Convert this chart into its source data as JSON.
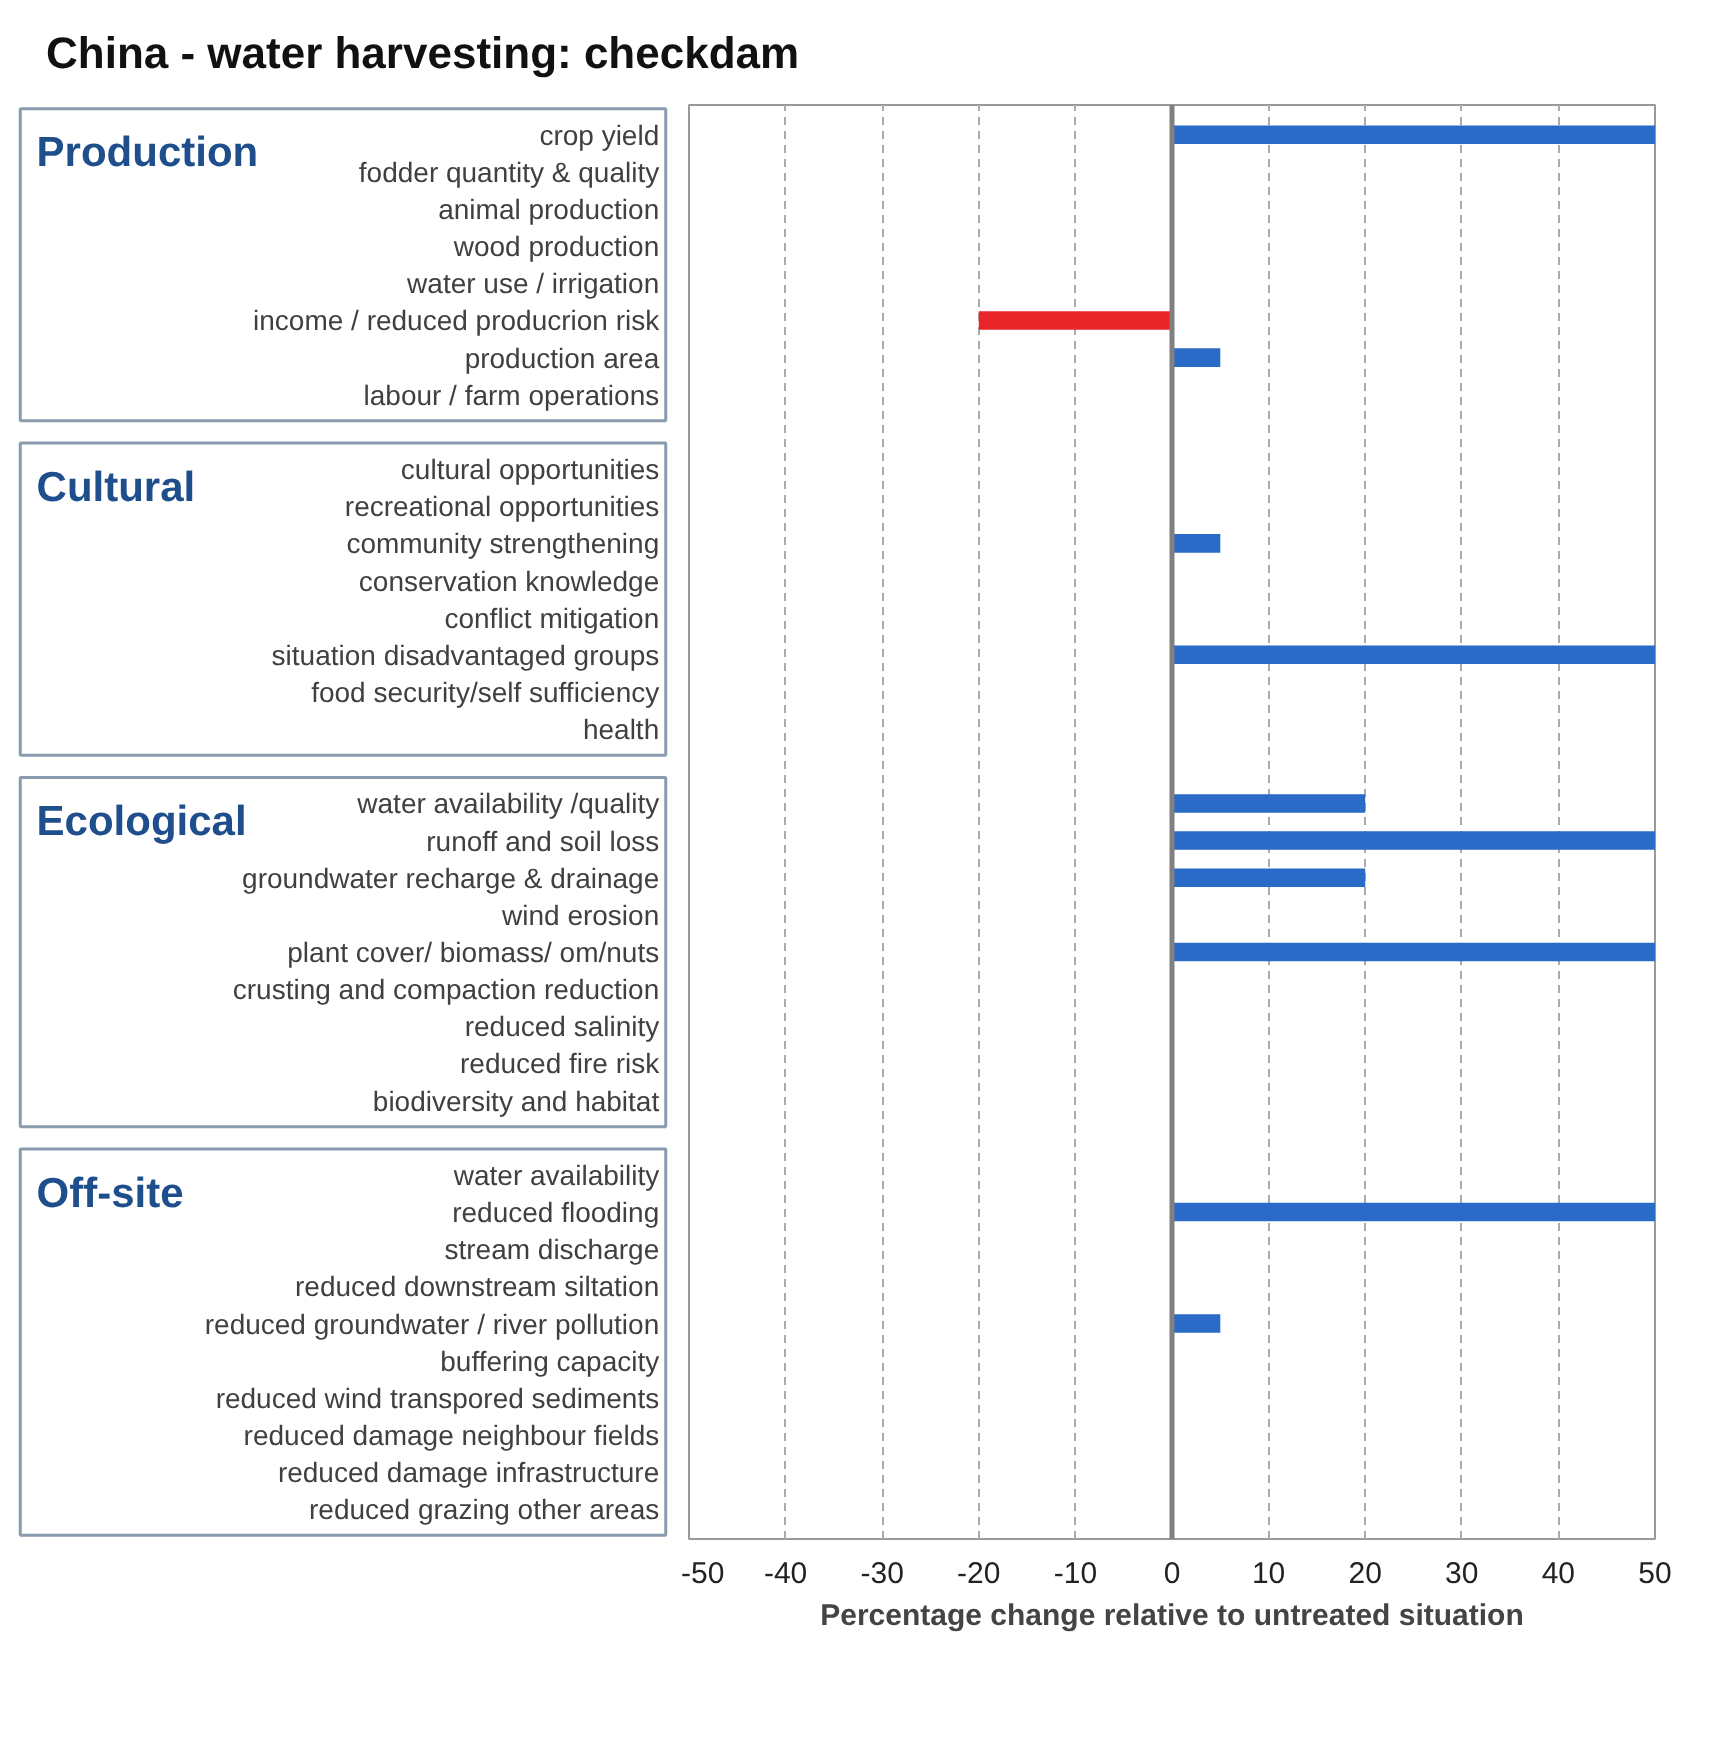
{
  "chart_data": {
    "type": "bar",
    "orientation": "horizontal",
    "title": "China - water harvesting: checkdam",
    "xlabel": "Percentage change relative to untreated situation",
    "categories": [
      "crop yield",
      "fodder quantity & quality",
      "animal production",
      "wood production",
      "water use / irrigation",
      "income / reduced producrion risk",
      "production area",
      "labour / farm operations",
      null,
      "cultural opportunities",
      "recreational opportunities",
      "community strengthening",
      "conservation knowledge",
      "conflict mitigation",
      "situation disadvantaged groups",
      "food security/self sufficiency",
      "health",
      null,
      "water availability /quality",
      "runoff and soil loss",
      "groundwater recharge & drainage",
      "wind erosion",
      "plant cover/ biomass/ om/nuts",
      "crusting and compaction reduction",
      "reduced salinity",
      "reduced fire risk",
      "biodiversity and habitat",
      null,
      "water availability",
      "reduced flooding",
      "stream discharge",
      "reduced downstream siltation",
      "reduced groundwater / river pollution",
      "buffering capacity",
      "reduced wind transpored sediments",
      "reduced damage neighbour fields",
      "reduced damage infrastructure",
      "reduced grazing other areas"
    ],
    "values": [
      50,
      null,
      null,
      null,
      null,
      -20,
      5,
      null,
      null,
      null,
      null,
      5,
      null,
      null,
      50,
      null,
      null,
      null,
      20,
      50,
      20,
      null,
      50,
      null,
      null,
      null,
      null,
      null,
      null,
      50,
      null,
      null,
      5,
      null,
      null,
      null,
      null,
      null
    ],
    "colors": [
      "#2a6bc8",
      "#2a6bc8",
      "#2a6bc8",
      "#2a6bc8",
      "#2a6bc8",
      "#e8262a",
      "#2a6bc8",
      "#2a6bc8",
      "#2a6bc8",
      "#2a6bc8",
      "#2a6bc8",
      "#2a6bc8",
      "#2a6bc8",
      "#2a6bc8",
      "#2a6bc8",
      "#2a6bc8",
      "#2a6bc8",
      "#2a6bc8",
      "#2a6bc8",
      "#2a6bc8",
      "#2a6bc8",
      "#2a6bc8",
      "#2a6bc8",
      "#2a6bc8",
      "#2a6bc8",
      "#2a6bc8",
      "#2a6bc8",
      "#2a6bc8",
      "#2a6bc8",
      "#2a6bc8",
      "#2a6bc8",
      "#2a6bc8",
      "#2a6bc8",
      "#2a6bc8",
      "#2a6bc8",
      "#2a6bc8",
      "#2a6bc8",
      "#2a6bc8"
    ],
    "xlim": [
      -50,
      50
    ],
    "xticks": [
      -50,
      -40,
      -30,
      -20,
      -10,
      0,
      10,
      20,
      30,
      40,
      50
    ],
    "grid": "x",
    "annotations": [
      "Production",
      "Cultural",
      "Ecological",
      "Off-site"
    ]
  }
}
